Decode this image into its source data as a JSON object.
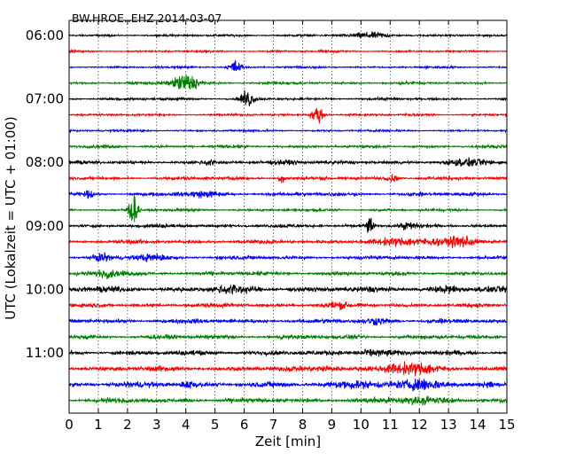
{
  "chart_data": {
    "type": "line",
    "title": "BW.HROE..EHZ 2014-03-07",
    "xlabel": "Zeit  [min]",
    "ylabel": "UTC (Lokalzeit = UTC + 01:00)",
    "xlim": [
      0,
      15
    ],
    "x_ticks": [
      0,
      1,
      2,
      3,
      4,
      5,
      6,
      7,
      8,
      9,
      10,
      11,
      12,
      13,
      14,
      15
    ],
    "x_tick_labels": [
      "0",
      "1",
      "2",
      "3",
      "4",
      "5",
      "6",
      "7",
      "8",
      "9",
      "10",
      "11",
      "12",
      "13",
      "14",
      "15"
    ],
    "y_tick_labels": [
      "06:00",
      "07:00",
      "08:00",
      "09:00",
      "10:00",
      "11:00"
    ],
    "grid": "vertical dotted at each minute",
    "trace_colors": [
      "#000000",
      "#ff0000",
      "#0000ff",
      "#008000"
    ],
    "series": [
      {
        "start": "06:00",
        "color": "#000000",
        "noise": 0.9,
        "events": [
          [
            10.4,
            2.5,
            0.5
          ]
        ]
      },
      {
        "start": "06:15",
        "color": "#ff0000",
        "noise": 0.9,
        "events": []
      },
      {
        "start": "06:30",
        "color": "#0000ff",
        "noise": 0.9,
        "events": [
          [
            5.7,
            6,
            0.15
          ]
        ]
      },
      {
        "start": "06:45",
        "color": "#008000",
        "noise": 1.1,
        "events": [
          [
            4.0,
            9,
            0.3
          ]
        ]
      },
      {
        "start": "07:00",
        "color": "#000000",
        "noise": 1.1,
        "events": [
          [
            6.1,
            8,
            0.15
          ]
        ]
      },
      {
        "start": "07:15",
        "color": "#ff0000",
        "noise": 1.0,
        "events": [
          [
            8.5,
            8,
            0.15
          ]
        ]
      },
      {
        "start": "07:30",
        "color": "#0000ff",
        "noise": 0.9,
        "events": []
      },
      {
        "start": "07:45",
        "color": "#008000",
        "noise": 1.2,
        "events": []
      },
      {
        "start": "08:00",
        "color": "#000000",
        "noise": 1.5,
        "events": [
          [
            13.6,
            2.2,
            0.6
          ],
          [
            4.8,
            2.5,
            0.1
          ],
          [
            7.5,
            2,
            0.3
          ]
        ]
      },
      {
        "start": "08:15",
        "color": "#ff0000",
        "noise": 1.4,
        "events": [
          [
            7.3,
            3.5,
            0.1
          ],
          [
            11.1,
            3,
            0.15
          ]
        ]
      },
      {
        "start": "08:30",
        "color": "#0000ff",
        "noise": 1.5,
        "events": [
          [
            0.7,
            3,
            0.1
          ],
          [
            4.5,
            2,
            0.5
          ]
        ]
      },
      {
        "start": "08:45",
        "color": "#008000",
        "noise": 1.1,
        "events": [
          [
            2.2,
            13,
            0.12
          ]
        ]
      },
      {
        "start": "09:00",
        "color": "#000000",
        "noise": 1.5,
        "events": [
          [
            10.3,
            8,
            0.1
          ],
          [
            11.6,
            2.5,
            0.2
          ]
        ]
      },
      {
        "start": "09:15",
        "color": "#ff0000",
        "noise": 1.6,
        "events": [
          [
            13.5,
            4,
            0.3
          ],
          [
            12.0,
            2.5,
            1.3
          ]
        ]
      },
      {
        "start": "09:30",
        "color": "#0000ff",
        "noise": 1.6,
        "events": [
          [
            1.1,
            3.5,
            0.15
          ],
          [
            2.8,
            2.5,
            0.4
          ]
        ]
      },
      {
        "start": "09:45",
        "color": "#008000",
        "noise": 1.7,
        "events": [
          [
            1.3,
            3,
            0.3
          ]
        ]
      },
      {
        "start": "10:00",
        "color": "#000000",
        "noise": 2.4,
        "events": [
          [
            5.5,
            2.5,
            0.4
          ],
          [
            13.0,
            2.5,
            0.3
          ]
        ]
      },
      {
        "start": "10:15",
        "color": "#ff0000",
        "noise": 1.7,
        "events": [
          [
            9.1,
            2.2,
            0.3
          ]
        ]
      },
      {
        "start": "10:30",
        "color": "#0000ff",
        "noise": 1.8,
        "events": [
          [
            10.5,
            2.5,
            0.3
          ]
        ]
      },
      {
        "start": "10:45",
        "color": "#008000",
        "noise": 1.8,
        "events": []
      },
      {
        "start": "11:00",
        "color": "#000000",
        "noise": 2.0,
        "events": [
          [
            10.4,
            2.5,
            0.5
          ]
        ]
      },
      {
        "start": "11:15",
        "color": "#ff0000",
        "noise": 2.2,
        "events": [
          [
            11.3,
            3.5,
            0.5
          ],
          [
            12.2,
            2.5,
            0.4
          ],
          [
            8.9,
            2.5,
            0.3
          ]
        ]
      },
      {
        "start": "11:30",
        "color": "#0000ff",
        "noise": 2.2,
        "events": [
          [
            12.2,
            4.5,
            0.5
          ],
          [
            4.1,
            3,
            0.2
          ],
          [
            9.8,
            3,
            0.6
          ],
          [
            14.4,
            2.5,
            0.2
          ]
        ]
      },
      {
        "start": "11:45",
        "color": "#008000",
        "noise": 2.0,
        "events": [
          [
            12.0,
            2.5,
            0.8
          ]
        ]
      }
    ]
  }
}
